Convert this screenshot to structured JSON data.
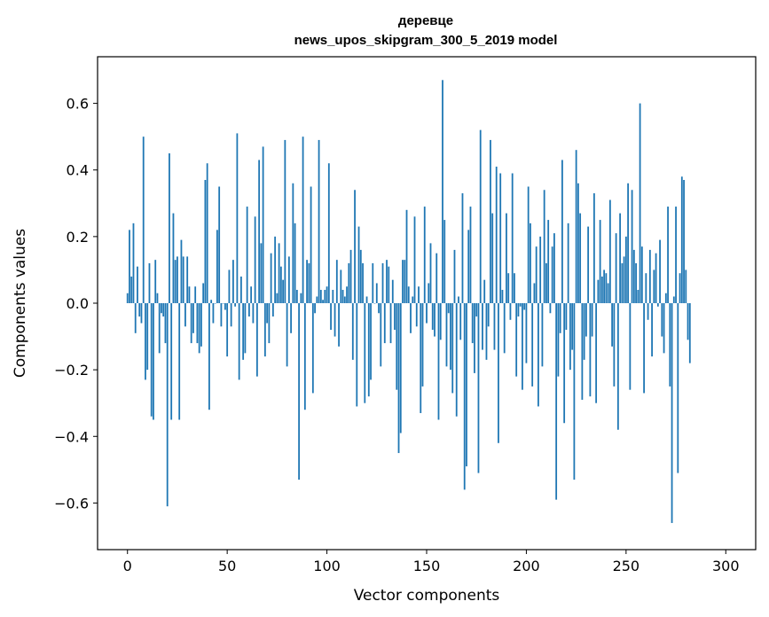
{
  "chart_data": {
    "type": "bar",
    "title": "деревце",
    "subtitle": "news_upos_skipgram_300_5_2019 model",
    "xlabel": "Vector components",
    "ylabel": "Components values",
    "xlim": [
      -15,
      315
    ],
    "ylim": [
      -0.74,
      0.74
    ],
    "xticks": [
      0,
      50,
      100,
      150,
      200,
      250,
      300
    ],
    "yticks": [
      -0.6,
      -0.4,
      -0.2,
      0.0,
      0.2,
      0.4,
      0.6
    ],
    "ytick_labels": [
      "−0.6",
      "−0.4",
      "−0.2",
      "0.0",
      "0.2",
      "0.4",
      "0.6"
    ],
    "bar_color": "#1f77b4",
    "grid": false,
    "values": [
      0.03,
      0.22,
      0.08,
      0.24,
      -0.09,
      0.11,
      -0.04,
      -0.06,
      0.5,
      -0.23,
      -0.2,
      0.12,
      -0.34,
      -0.35,
      0.13,
      0.03,
      -0.15,
      -0.03,
      -0.04,
      -0.12,
      -0.61,
      0.45,
      -0.35,
      0.27,
      0.13,
      0.14,
      -0.35,
      0.19,
      0.14,
      -0.07,
      0.14,
      0.05,
      -0.12,
      -0.09,
      0.05,
      -0.12,
      -0.15,
      -0.13,
      0.06,
      0.37,
      0.42,
      -0.32,
      0.01,
      -0.06,
      0.0,
      0.22,
      0.35,
      -0.07,
      0.0,
      -0.02,
      -0.16,
      0.1,
      -0.07,
      0.13,
      -0.01,
      0.51,
      -0.23,
      0.08,
      -0.17,
      -0.15,
      0.29,
      -0.04,
      0.05,
      -0.06,
      0.26,
      -0.22,
      0.43,
      0.18,
      0.47,
      -0.16,
      -0.06,
      -0.12,
      0.15,
      -0.04,
      0.2,
      0.03,
      0.18,
      0.11,
      0.07,
      0.49,
      -0.19,
      0.14,
      -0.09,
      0.36,
      0.24,
      0.04,
      -0.53,
      0.03,
      0.5,
      -0.32,
      0.13,
      0.12,
      0.35,
      -0.27,
      -0.03,
      0.02,
      0.49,
      0.04,
      0.01,
      0.04,
      0.05,
      0.42,
      -0.08,
      0.04,
      -0.1,
      0.13,
      -0.13,
      0.1,
      0.04,
      0.02,
      0.05,
      0.12,
      0.16,
      -0.17,
      0.34,
      -0.31,
      0.23,
      0.16,
      0.12,
      -0.3,
      0.02,
      -0.28,
      -0.23,
      0.12,
      0.0,
      0.06,
      -0.03,
      -0.19,
      0.12,
      -0.12,
      0.13,
      0.11,
      -0.12,
      0.07,
      -0.08,
      -0.26,
      -0.45,
      -0.39,
      0.13,
      0.13,
      0.28,
      0.05,
      -0.09,
      0.02,
      0.26,
      -0.07,
      0.05,
      -0.33,
      -0.25,
      0.29,
      -0.06,
      0.06,
      0.18,
      -0.08,
      -0.1,
      0.15,
      -0.35,
      -0.11,
      0.67,
      0.25,
      -0.19,
      -0.03,
      -0.2,
      -0.27,
      0.16,
      -0.34,
      0.02,
      -0.11,
      0.33,
      -0.56,
      -0.49,
      0.22,
      0.29,
      -0.12,
      -0.21,
      -0.04,
      -0.51,
      0.52,
      -0.14,
      0.07,
      -0.17,
      -0.07,
      0.49,
      0.27,
      -0.14,
      0.41,
      -0.42,
      0.39,
      0.04,
      -0.15,
      0.27,
      0.09,
      -0.05,
      0.39,
      0.09,
      -0.22,
      -0.04,
      -0.01,
      -0.26,
      -0.02,
      -0.18,
      0.35,
      0.24,
      -0.25,
      0.06,
      0.17,
      -0.31,
      0.2,
      -0.19,
      0.34,
      0.12,
      0.25,
      -0.03,
      0.17,
      0.21,
      -0.59,
      -0.22,
      -0.09,
      0.43,
      -0.36,
      -0.08,
      0.24,
      -0.2,
      -0.14,
      -0.53,
      0.46,
      0.36,
      0.27,
      -0.29,
      -0.17,
      -0.1,
      0.23,
      -0.28,
      -0.1,
      0.33,
      -0.3,
      0.07,
      0.25,
      0.08,
      0.1,
      0.09,
      0.06,
      0.31,
      -0.13,
      -0.25,
      0.21,
      -0.38,
      0.27,
      0.12,
      0.14,
      0.2,
      0.36,
      -0.26,
      0.34,
      0.16,
      0.12,
      0.04,
      0.6,
      0.17,
      -0.27,
      0.09,
      -0.05,
      0.16,
      -0.16,
      0.1,
      0.15,
      -0.01,
      0.19,
      -0.1,
      -0.15,
      0.03,
      0.29,
      -0.25,
      -0.66,
      0.02,
      0.29,
      -0.51,
      0.09,
      0.38,
      0.37,
      0.1,
      -0.11,
      -0.18
    ]
  }
}
